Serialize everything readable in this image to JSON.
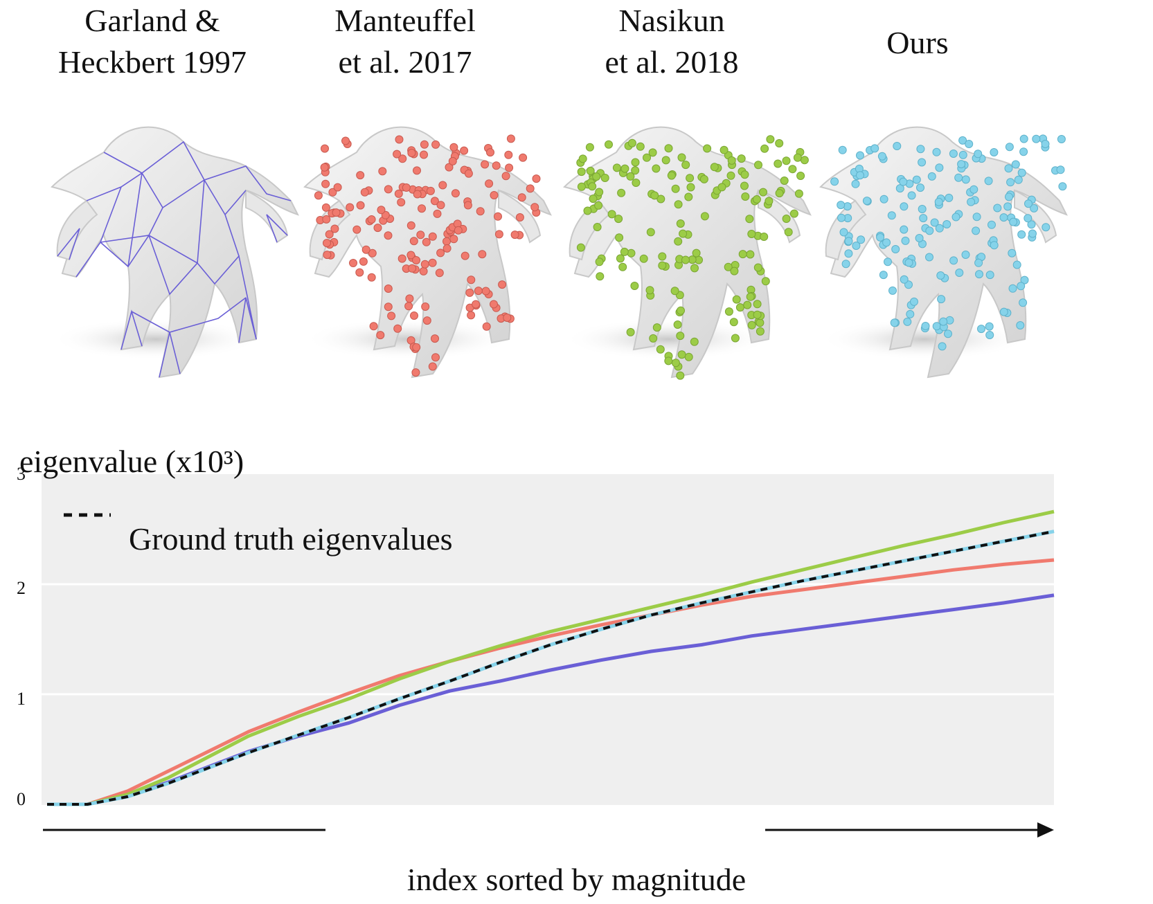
{
  "methods": [
    {
      "key": "garland",
      "title_line1": "Garland &",
      "title_line2": "Heckbert 1997",
      "color": "#6a5fd6"
    },
    {
      "key": "manteuffel",
      "title_line1": "Manteuffel",
      "title_line2": "et al. 2017",
      "color": "#f07a6e"
    },
    {
      "key": "nasikun",
      "title_line1": "Nasikun",
      "title_line2": "et al. 2018",
      "color": "#9ccc47"
    },
    {
      "key": "ours",
      "title_line1": "Ours",
      "title_line2": "",
      "color": "#86d3ea"
    }
  ],
  "chart_data": {
    "type": "line",
    "ylabel": "eigenvalue (x10³)",
    "xlabel": "index sorted by magnitude",
    "yticks": [
      "0",
      "1",
      "2",
      "3"
    ],
    "ylim": [
      0,
      3
    ],
    "xlim": [
      0,
      100
    ],
    "grid": true,
    "legend": {
      "entry": "Ground truth eigenvalues",
      "placement": "top-left",
      "style": "dashed-black"
    },
    "x": [
      0,
      4,
      8,
      12,
      16,
      20,
      25,
      30,
      35,
      40,
      45,
      50,
      55,
      60,
      65,
      70,
      75,
      80,
      85,
      90,
      95,
      100
    ],
    "series": [
      {
        "key": "garland",
        "color": "#6a5fd6",
        "values": [
          0,
          0,
          0.08,
          0.2,
          0.34,
          0.48,
          0.62,
          0.74,
          0.9,
          1.03,
          1.12,
          1.22,
          1.31,
          1.39,
          1.45,
          1.53,
          1.59,
          1.65,
          1.71,
          1.77,
          1.83,
          1.9
        ]
      },
      {
        "key": "manteuffel",
        "color": "#f07a6e",
        "values": [
          0,
          0,
          0.12,
          0.3,
          0.48,
          0.66,
          0.84,
          1.01,
          1.17,
          1.3,
          1.42,
          1.53,
          1.63,
          1.72,
          1.81,
          1.89,
          1.95,
          2.01,
          2.07,
          2.13,
          2.18,
          2.22
        ]
      },
      {
        "key": "nasikun",
        "color": "#9ccc47",
        "values": [
          0,
          0,
          0.09,
          0.24,
          0.43,
          0.62,
          0.8,
          0.96,
          1.14,
          1.3,
          1.44,
          1.57,
          1.68,
          1.79,
          1.9,
          2.02,
          2.13,
          2.24,
          2.35,
          2.45,
          2.56,
          2.66
        ]
      },
      {
        "key": "ours",
        "color": "#86d3ea",
        "values": [
          0,
          0,
          0.07,
          0.19,
          0.33,
          0.47,
          0.63,
          0.79,
          0.96,
          1.12,
          1.29,
          1.45,
          1.59,
          1.72,
          1.83,
          1.93,
          2.03,
          2.12,
          2.21,
          2.3,
          2.39,
          2.48
        ]
      },
      {
        "key": "ground_truth",
        "color": "#111111",
        "dashed": true,
        "values": [
          0,
          0,
          0.07,
          0.19,
          0.33,
          0.47,
          0.63,
          0.79,
          0.96,
          1.12,
          1.29,
          1.45,
          1.59,
          1.72,
          1.83,
          1.93,
          2.03,
          2.12,
          2.21,
          2.3,
          2.39,
          2.48
        ]
      }
    ]
  }
}
